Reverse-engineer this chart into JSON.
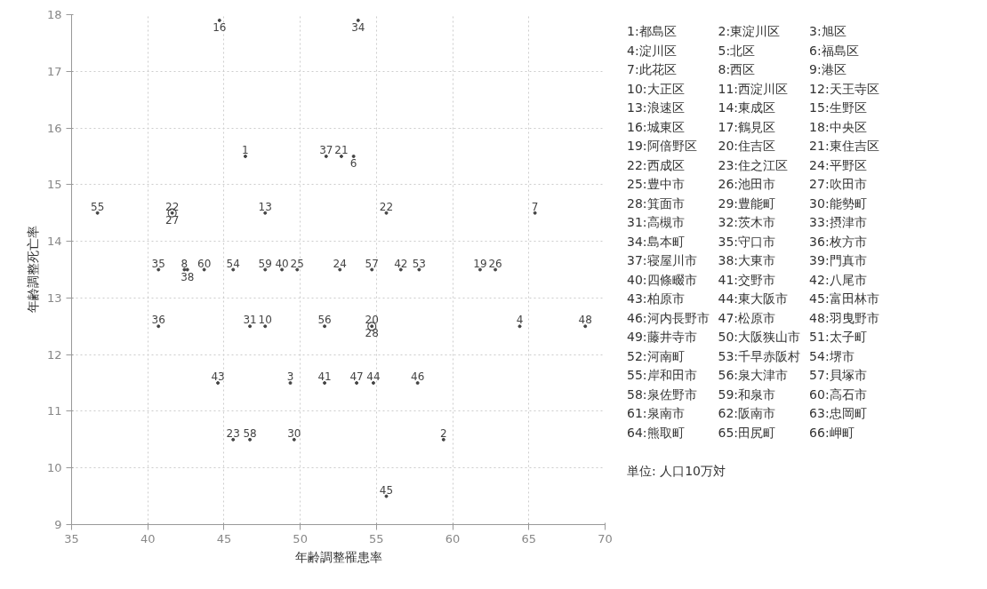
{
  "chart_data": {
    "type": "scatter",
    "xlabel": "年齢調整罹患率",
    "ylabel": "年齢調整死亡率",
    "color": "#444444",
    "marker": "circle",
    "grid": true,
    "xlim": [
      35,
      70
    ],
    "xticks": [
      35,
      40,
      45,
      50,
      55,
      60,
      65,
      70
    ],
    "ylim": [
      9,
      18
    ],
    "yticks": [
      9,
      10,
      11,
      12,
      13,
      14,
      15,
      16,
      17,
      18
    ],
    "series": [
      {
        "name": "16",
        "x": [
          44.7
        ],
        "values": [
          17.9
        ]
      },
      {
        "name": "34",
        "x": [
          53.8
        ],
        "values": [
          17.9
        ]
      },
      {
        "name": "1",
        "x": [
          46.4
        ],
        "values": [
          15.5
        ]
      },
      {
        "name": "37",
        "x": [
          51.7
        ],
        "values": [
          15.5
        ]
      },
      {
        "name": "21",
        "x": [
          52.7
        ],
        "values": [
          15.5
        ]
      },
      {
        "name": "6",
        "x": [
          53.5
        ],
        "values": [
          15.5
        ]
      },
      {
        "name": "55",
        "x": [
          36.7
        ],
        "values": [
          14.5
        ]
      },
      {
        "name": "22",
        "x": [
          41.6
        ],
        "values": [
          14.5
        ]
      },
      {
        "name": "27",
        "x": [
          41.6
        ],
        "values": [
          14.5
        ]
      },
      {
        "name": "13",
        "x": [
          47.7
        ],
        "values": [
          14.5
        ]
      },
      {
        "name": "22",
        "x": [
          55.65
        ],
        "values": [
          14.5
        ]
      },
      {
        "name": "7",
        "x": [
          65.4
        ],
        "values": [
          14.5
        ]
      },
      {
        "name": "35",
        "x": [
          40.7
        ],
        "values": [
          13.5
        ]
      },
      {
        "name": "8",
        "x": [
          42.4
        ],
        "values": [
          13.5
        ]
      },
      {
        "name": "38",
        "x": [
          42.6
        ],
        "values": [
          13.5
        ]
      },
      {
        "name": "60",
        "x": [
          43.7
        ],
        "values": [
          13.5
        ]
      },
      {
        "name": "54",
        "x": [
          45.6
        ],
        "values": [
          13.5
        ]
      },
      {
        "name": "59",
        "x": [
          47.7
        ],
        "values": [
          13.5
        ]
      },
      {
        "name": "40",
        "x": [
          48.8
        ],
        "values": [
          13.5
        ]
      },
      {
        "name": "25",
        "x": [
          49.8
        ],
        "values": [
          13.5
        ]
      },
      {
        "name": "24",
        "x": [
          52.6
        ],
        "values": [
          13.5
        ]
      },
      {
        "name": "57",
        "x": [
          54.7
        ],
        "values": [
          13.5
        ]
      },
      {
        "name": "42",
        "x": [
          56.6
        ],
        "values": [
          13.5
        ]
      },
      {
        "name": "53",
        "x": [
          57.8
        ],
        "values": [
          13.5
        ]
      },
      {
        "name": "19",
        "x": [
          61.8
        ],
        "values": [
          13.5
        ]
      },
      {
        "name": "26",
        "x": [
          62.8
        ],
        "values": [
          13.5
        ]
      },
      {
        "name": "36",
        "x": [
          40.7
        ],
        "values": [
          12.5
        ]
      },
      {
        "name": "31",
        "x": [
          46.7
        ],
        "values": [
          12.5
        ]
      },
      {
        "name": "10",
        "x": [
          47.7
        ],
        "values": [
          12.5
        ]
      },
      {
        "name": "56",
        "x": [
          51.6
        ],
        "values": [
          12.5
        ]
      },
      {
        "name": "20",
        "x": [
          54.7
        ],
        "values": [
          12.5
        ]
      },
      {
        "name": "28",
        "x": [
          54.7
        ],
        "values": [
          12.5
        ]
      },
      {
        "name": "4",
        "x": [
          64.4
        ],
        "values": [
          12.5
        ]
      },
      {
        "name": "48",
        "x": [
          68.7
        ],
        "values": [
          12.5
        ]
      },
      {
        "name": "43",
        "x": [
          44.6
        ],
        "values": [
          11.5
        ]
      },
      {
        "name": "3",
        "x": [
          49.35
        ],
        "values": [
          11.5
        ]
      },
      {
        "name": "41",
        "x": [
          51.6
        ],
        "values": [
          11.5
        ]
      },
      {
        "name": "47",
        "x": [
          53.7
        ],
        "values": [
          11.5
        ]
      },
      {
        "name": "44",
        "x": [
          54.8
        ],
        "values": [
          11.5
        ]
      },
      {
        "name": "46",
        "x": [
          57.7
        ],
        "values": [
          11.5
        ]
      },
      {
        "name": "23",
        "x": [
          45.6
        ],
        "values": [
          10.5
        ]
      },
      {
        "name": "58",
        "x": [
          46.7
        ],
        "values": [
          10.5
        ]
      },
      {
        "name": "30",
        "x": [
          49.6
        ],
        "values": [
          10.5
        ]
      },
      {
        "name": "2",
        "x": [
          59.4
        ],
        "values": [
          10.5
        ]
      },
      {
        "name": "45",
        "x": [
          55.65
        ],
        "values": [
          9.5
        ]
      }
    ],
    "annotations": [
      "1:都島区",
      "2:東淀川区",
      "3:旭区",
      "4:淀川区",
      "5:北区",
      "6:福島区",
      "7:此花区",
      "8:西区",
      "9:港区",
      "10:大正区",
      "11:西淀川区",
      "12:天王寺区",
      "13:浪速区",
      "14:東成区",
      "15:生野区",
      "16:城東区",
      "17:鶴見区",
      "18:中央区",
      "19:阿倍野区",
      "20:住吉区",
      "21:東住吉区",
      "22:西成区",
      "23:住之江区",
      "24:平野区",
      "25:豊中市",
      "26:池田市",
      "27:吹田市",
      "28:箕面市",
      "29:豊能町",
      "30:能勢町",
      "31:高槻市",
      "32:茨木市",
      "33:摂津市",
      "34:島本町",
      "35:守口市",
      "36:枚方市",
      "37:寝屋川市",
      "38:大東市",
      "39:門真市",
      "40:四條畷市",
      "41:交野市",
      "42:八尾市",
      "43:柏原市",
      "44:東大阪市",
      "45:富田林市",
      "46:河内長野市",
      "47:松原市",
      "48:羽曳野市",
      "49:藤井寺市",
      "50:大阪狭山市",
      "51:太子町",
      "52:河南町",
      "53:千早赤阪村",
      "54:堺市",
      "55:岸和田市",
      "56:泉大津市",
      "57:貝塚市",
      "58:泉佐野市",
      "59:和泉市",
      "60:高石市",
      "61:泉南市",
      "62:阪南市",
      "63:忠岡町",
      "64:熊取町",
      "65:田尻町",
      "66:岬町",
      "単位: 人口10万対"
    ]
  }
}
